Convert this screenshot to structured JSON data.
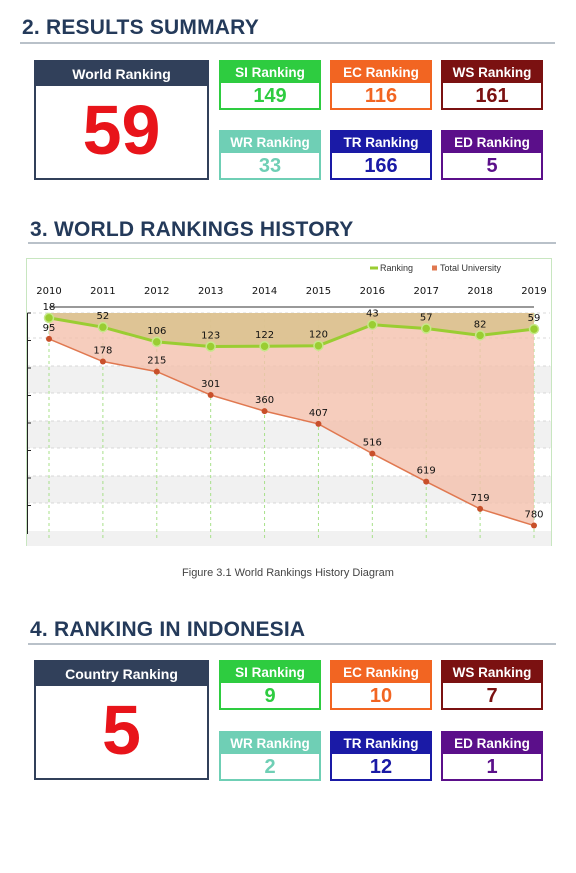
{
  "section2": {
    "title": "2. RESULTS SUMMARY",
    "main": {
      "label": "World Ranking",
      "value": "59"
    },
    "boxes": [
      {
        "label": "SI Ranking",
        "value": "149",
        "color": "#2ecc40"
      },
      {
        "label": "EC Ranking",
        "value": "116",
        "color": "#f26522"
      },
      {
        "label": "WS Ranking",
        "value": "161",
        "color": "#7b1111"
      },
      {
        "label": "WR Ranking",
        "value": "33",
        "color": "#6fcfb5"
      },
      {
        "label": "TR Ranking",
        "value": "166",
        "color": "#1a1aa6"
      },
      {
        "label": "ED Ranking",
        "value": "5",
        "color": "#5b0f8a"
      }
    ]
  },
  "section3": {
    "title": "3. WORLD RANKINGS HISTORY",
    "caption": "Figure 3.1 World Rankings History Diagram"
  },
  "chart_data": {
    "type": "line",
    "x": [
      "2010",
      "2011",
      "2012",
      "2013",
      "2014",
      "2015",
      "2016",
      "2017",
      "2018",
      "2019"
    ],
    "series": [
      {
        "name": "Ranking",
        "values": [
          18,
          52,
          106,
          123,
          122,
          120,
          43,
          57,
          82,
          59
        ],
        "color": "#9acd32"
      },
      {
        "name": "Total University",
        "values": [
          95,
          178,
          215,
          301,
          360,
          407,
          516,
          619,
          719,
          780
        ],
        "color": "#e07850"
      }
    ],
    "y_reversed": true,
    "ylim": [
      0,
      800
    ],
    "legend": "top-right",
    "grid": true
  },
  "section4": {
    "title": "4. RANKING IN INDONESIA",
    "main": {
      "label": "Country Ranking",
      "value": "5"
    },
    "boxes": [
      {
        "label": "SI Ranking",
        "value": "9",
        "color": "#2ecc40"
      },
      {
        "label": "EC Ranking",
        "value": "10",
        "color": "#f26522"
      },
      {
        "label": "WS Ranking",
        "value": "7",
        "color": "#7b1111"
      },
      {
        "label": "WR Ranking",
        "value": "2",
        "color": "#6fcfb5"
      },
      {
        "label": "TR Ranking",
        "value": "12",
        "color": "#1a1aa6"
      },
      {
        "label": "ED Ranking",
        "value": "1",
        "color": "#5b0f8a"
      }
    ]
  }
}
